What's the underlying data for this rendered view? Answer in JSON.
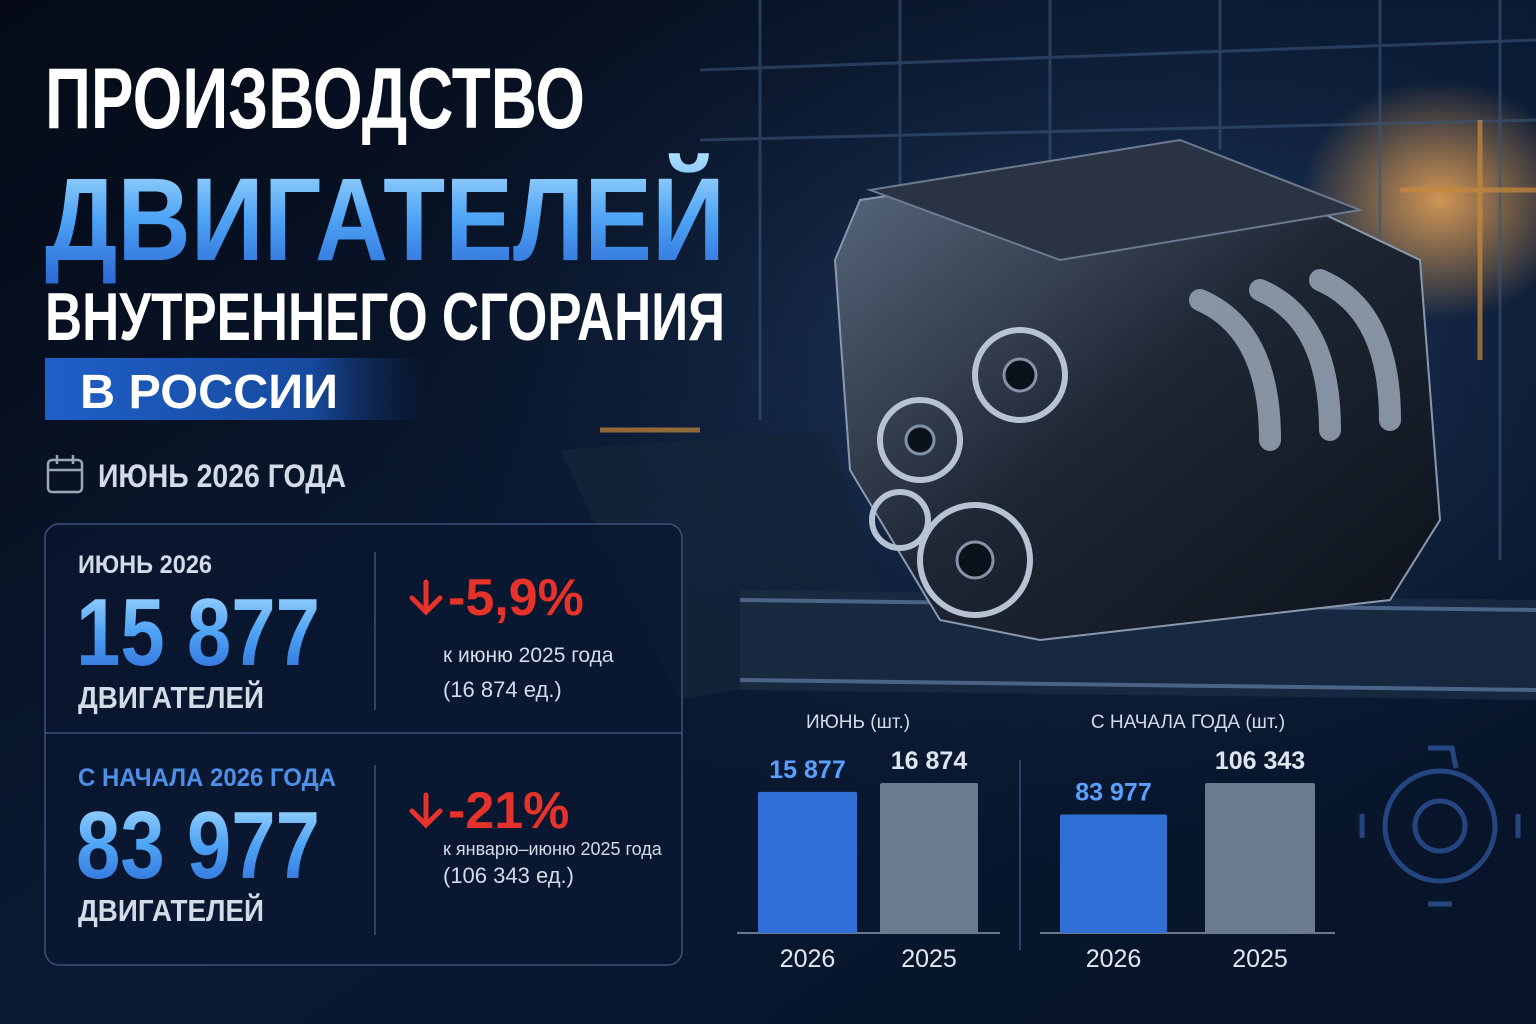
{
  "header": {
    "title_line1": "ПРОИЗВОДСТВО",
    "title_line2": "ДВИГАТЕЛЕЙ",
    "title_line3": "ВНУТРЕННЕГО СГОРАНИЯ",
    "title_line4": "В РОССИИ",
    "period": "ИЮНЬ 2026 ГОДА"
  },
  "stats": [
    {
      "label": "ИЮНЬ 2026",
      "value": "15 877",
      "unit": "ДВИГАТЕЛЕЙ",
      "change": "-5,9%",
      "comparison": "к июню 2025 года",
      "reference": "(16 874 ед.)"
    },
    {
      "label": "С НАЧАЛА 2026 ГОДА",
      "value": "83 977",
      "unit": "ДВИГАТЕЛЕЙ",
      "change": "-21%",
      "comparison": "к январю–июню 2025 года",
      "reference": "(106 343 ед.)"
    }
  ],
  "chart_data": [
    {
      "type": "bar",
      "title": "ИЮНЬ (шт.)",
      "categories": [
        "2026",
        "2025"
      ],
      "values": [
        15877,
        16874
      ],
      "value_labels": [
        "15 877",
        "16 874"
      ],
      "colors": [
        "#2f6fd6",
        "#6c7a8e"
      ]
    },
    {
      "type": "bar",
      "title": "С НАЧАЛА ГОДА (шт.)",
      "categories": [
        "2026",
        "2025"
      ],
      "values": [
        83977,
        106343
      ],
      "value_labels": [
        "83 977",
        "106 343"
      ],
      "colors": [
        "#2f6fd6",
        "#6c7a8e"
      ]
    }
  ]
}
